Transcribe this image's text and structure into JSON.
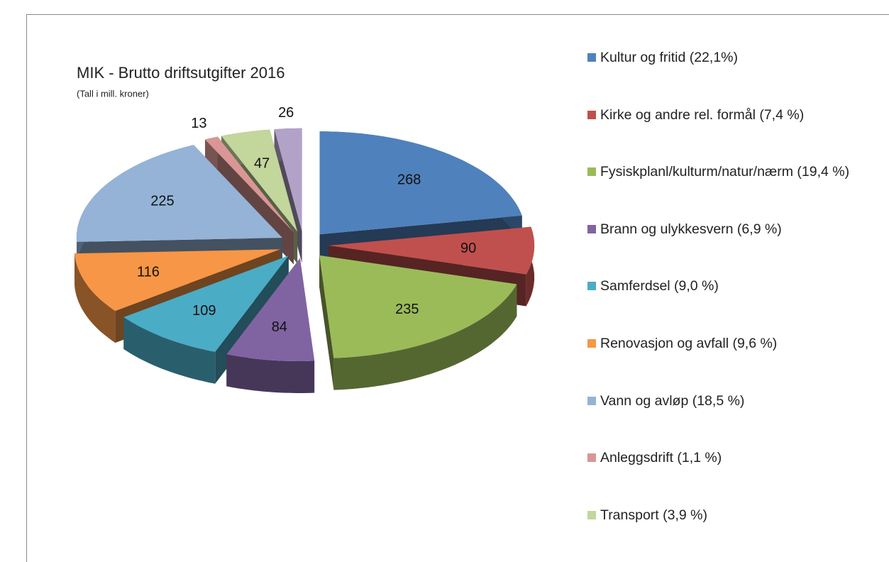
{
  "chart_data": {
    "type": "pie",
    "title": "MIK - Brutto driftsutgifter 2016",
    "subtitle": "(Tall i mill. kroner)",
    "categories": [
      "Kultur og fritid (22,1%)",
      "Kirke og andre rel. formål (7,4 %)",
      "Fysiskplanl/kulturm/natur/nærm (19,4 %)",
      "Brann og ulykkesvern (6,9 %)",
      "Samferdsel (9,0 %)",
      "Renovasjon og avfall (9,6 %)",
      "Vann og avløp (18,5 %)",
      "Anleggsdrift (1,1 %)",
      "Transport (3,9 %)",
      null
    ],
    "values": [
      268,
      90,
      235,
      84,
      109,
      116,
      225,
      13,
      47,
      26
    ],
    "colors": [
      "#4f81bd",
      "#c0504d",
      "#9bbb59",
      "#8064a2",
      "#4bacc6",
      "#f79646",
      "#95b3d7",
      "#d99694",
      "#c3d69b",
      "#b2a2c7"
    ],
    "legend": "right"
  }
}
